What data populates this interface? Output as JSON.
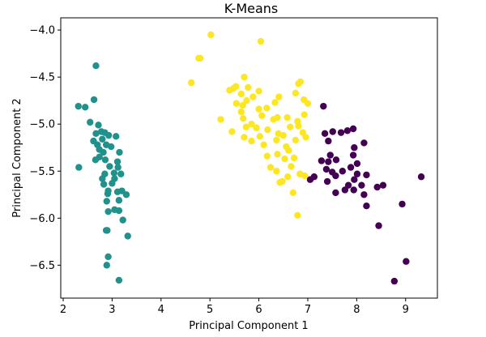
{
  "chart_data": {
    "type": "scatter",
    "title": "K-Means",
    "xlabel": "Principal Component 1",
    "ylabel": "Principal Component 2",
    "xlim": [
      1.95,
      9.65
    ],
    "ylim": [
      -6.85,
      -3.87
    ],
    "xticks": [
      2,
      3,
      4,
      5,
      6,
      7,
      8,
      9
    ],
    "yticks": [
      -4.0,
      -4.5,
      -5.0,
      -5.5,
      -6.0,
      -6.5
    ],
    "xtick_labels": [
      "2",
      "3",
      "4",
      "5",
      "6",
      "7",
      "8",
      "9"
    ],
    "ytick_labels": [
      "−4.0",
      "−4.5",
      "−5.0",
      "−5.5",
      "−6.0",
      "−6.5"
    ],
    "grid": false,
    "clusters": [
      {
        "color": "#21918c",
        "points": [
          [
            2.67,
            -4.38
          ],
          [
            2.31,
            -4.81
          ],
          [
            2.45,
            -4.82
          ],
          [
            2.63,
            -4.74
          ],
          [
            2.55,
            -4.98
          ],
          [
            2.72,
            -5.01
          ],
          [
            2.67,
            -5.1
          ],
          [
            2.78,
            -5.08
          ],
          [
            2.85,
            -5.09
          ],
          [
            2.8,
            -5.16
          ],
          [
            2.93,
            -5.12
          ],
          [
            3.08,
            -5.13
          ],
          [
            2.62,
            -5.18
          ],
          [
            2.7,
            -5.22
          ],
          [
            2.88,
            -5.22
          ],
          [
            2.74,
            -5.27
          ],
          [
            2.98,
            -5.24
          ],
          [
            2.74,
            -5.35
          ],
          [
            2.82,
            -5.3
          ],
          [
            3.15,
            -5.3
          ],
          [
            2.66,
            -5.38
          ],
          [
            2.86,
            -5.38
          ],
          [
            3.11,
            -5.4
          ],
          [
            2.32,
            -5.46
          ],
          [
            2.95,
            -5.45
          ],
          [
            3.12,
            -5.46
          ],
          [
            2.85,
            -5.53
          ],
          [
            3.04,
            -5.52
          ],
          [
            3.18,
            -5.53
          ],
          [
            2.8,
            -5.58
          ],
          [
            3.05,
            -5.58
          ],
          [
            2.83,
            -5.64
          ],
          [
            3.0,
            -5.63
          ],
          [
            2.92,
            -5.71
          ],
          [
            2.91,
            -5.74
          ],
          [
            3.11,
            -5.72
          ],
          [
            3.2,
            -5.71
          ],
          [
            3.29,
            -5.75
          ],
          [
            3.14,
            -5.81
          ],
          [
            2.89,
            -5.82
          ],
          [
            3.05,
            -5.91
          ],
          [
            2.92,
            -5.93
          ],
          [
            3.14,
            -5.92
          ],
          [
            3.22,
            -6.02
          ],
          [
            2.88,
            -6.13
          ],
          [
            2.9,
            -6.13
          ],
          [
            3.32,
            -6.19
          ],
          [
            2.92,
            -6.41
          ],
          [
            2.89,
            -6.5
          ],
          [
            3.14,
            -6.66
          ]
        ]
      },
      {
        "color": "#fde725",
        "points": [
          [
            5.02,
            -4.05
          ],
          [
            6.04,
            -4.12
          ],
          [
            4.77,
            -4.3
          ],
          [
            4.8,
            -4.3
          ],
          [
            4.62,
            -4.56
          ],
          [
            5.7,
            -4.5
          ],
          [
            6.85,
            -4.55
          ],
          [
            6.81,
            -4.57
          ],
          [
            5.53,
            -4.6
          ],
          [
            5.48,
            -4.62
          ],
          [
            5.78,
            -4.61
          ],
          [
            5.4,
            -4.64
          ],
          [
            5.64,
            -4.68
          ],
          [
            6.0,
            -4.65
          ],
          [
            6.75,
            -4.67
          ],
          [
            5.75,
            -4.75
          ],
          [
            5.88,
            -4.71
          ],
          [
            6.41,
            -4.71
          ],
          [
            6.92,
            -4.74
          ],
          [
            5.54,
            -4.78
          ],
          [
            5.67,
            -4.8
          ],
          [
            6.33,
            -4.77
          ],
          [
            7.0,
            -4.78
          ],
          [
            6.0,
            -4.84
          ],
          [
            6.16,
            -4.83
          ],
          [
            5.64,
            -4.87
          ],
          [
            6.06,
            -4.91
          ],
          [
            6.38,
            -4.93
          ],
          [
            6.93,
            -4.9
          ],
          [
            5.22,
            -4.95
          ],
          [
            5.68,
            -4.94
          ],
          [
            6.3,
            -4.95
          ],
          [
            6.58,
            -4.93
          ],
          [
            6.79,
            -4.97
          ],
          [
            5.85,
            -5.0
          ],
          [
            5.74,
            -5.03
          ],
          [
            5.95,
            -5.04
          ],
          [
            6.18,
            -5.06
          ],
          [
            6.64,
            -5.03
          ],
          [
            6.81,
            -5.02
          ],
          [
            5.45,
            -5.08
          ],
          [
            6.4,
            -5.1
          ],
          [
            6.9,
            -5.09
          ],
          [
            5.7,
            -5.14
          ],
          [
            6.02,
            -5.13
          ],
          [
            6.5,
            -5.12
          ],
          [
            6.96,
            -5.14
          ],
          [
            5.85,
            -5.18
          ],
          [
            6.36,
            -5.17
          ],
          [
            6.75,
            -5.17
          ],
          [
            6.1,
            -5.22
          ],
          [
            6.56,
            -5.24
          ],
          [
            6.38,
            -5.32
          ],
          [
            6.61,
            -5.28
          ],
          [
            6.17,
            -5.34
          ],
          [
            6.53,
            -5.37
          ],
          [
            6.72,
            -5.36
          ],
          [
            6.24,
            -5.46
          ],
          [
            6.36,
            -5.5
          ],
          [
            6.66,
            -5.45
          ],
          [
            6.84,
            -5.53
          ],
          [
            6.59,
            -5.56
          ],
          [
            6.94,
            -5.55
          ],
          [
            6.43,
            -5.62
          ],
          [
            6.48,
            -5.61
          ],
          [
            6.7,
            -5.73
          ],
          [
            6.79,
            -5.97
          ]
        ]
      },
      {
        "color": "#440154",
        "points": [
          [
            7.32,
            -4.81
          ],
          [
            7.35,
            -5.1
          ],
          [
            7.51,
            -5.08
          ],
          [
            7.68,
            -5.09
          ],
          [
            7.81,
            -5.07
          ],
          [
            7.42,
            -5.18
          ],
          [
            7.93,
            -5.05
          ],
          [
            7.28,
            -5.39
          ],
          [
            7.42,
            -5.4
          ],
          [
            7.46,
            -5.33
          ],
          [
            7.58,
            -5.38
          ],
          [
            7.93,
            -5.33
          ],
          [
            7.95,
            -5.25
          ],
          [
            8.15,
            -5.2
          ],
          [
            8.01,
            -5.42
          ],
          [
            7.38,
            -5.48
          ],
          [
            7.5,
            -5.51
          ],
          [
            7.71,
            -5.5
          ],
          [
            7.88,
            -5.46
          ],
          [
            8.01,
            -5.53
          ],
          [
            8.2,
            -5.54
          ],
          [
            7.13,
            -5.56
          ],
          [
            7.05,
            -5.59
          ],
          [
            7.57,
            -5.55
          ],
          [
            7.4,
            -5.61
          ],
          [
            7.83,
            -5.65
          ],
          [
            7.95,
            -5.59
          ],
          [
            8.1,
            -5.65
          ],
          [
            8.42,
            -5.67
          ],
          [
            8.54,
            -5.65
          ],
          [
            7.57,
            -5.73
          ],
          [
            7.76,
            -5.7
          ],
          [
            7.94,
            -5.7
          ],
          [
            8.15,
            -5.75
          ],
          [
            8.2,
            -5.87
          ],
          [
            9.32,
            -5.56
          ],
          [
            8.93,
            -5.85
          ],
          [
            8.45,
            -6.08
          ],
          [
            9.01,
            -6.46
          ],
          [
            8.77,
            -6.67
          ]
        ]
      }
    ]
  }
}
